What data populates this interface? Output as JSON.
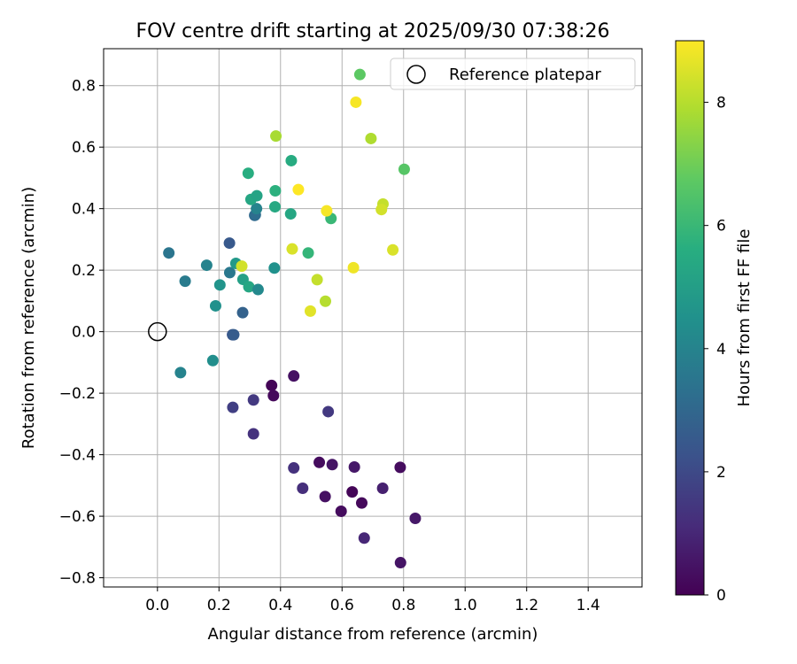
{
  "chart_data": {
    "type": "scatter",
    "title": "FOV centre drift starting at 2025/09/30 07:38:26",
    "xlabel": "Angular distance from reference (arcmin)",
    "ylabel": "Rotation from reference (arcmin)",
    "xlim": [
      -0.175,
      1.575
    ],
    "ylim": [
      -0.83,
      0.92
    ],
    "xticks": [
      0.0,
      0.2,
      0.4,
      0.6,
      0.8,
      1.0,
      1.2,
      1.4
    ],
    "xtick_labels": [
      "0.0",
      "0.2",
      "0.4",
      "0.6",
      "0.8",
      "1.0",
      "1.2",
      "1.4"
    ],
    "yticks": [
      -0.8,
      -0.6,
      -0.4,
      -0.2,
      0.0,
      0.2,
      0.4,
      0.6,
      0.8
    ],
    "ytick_labels": [
      "−0.8",
      "−0.6",
      "−0.4",
      "−0.2",
      "0.0",
      "0.2",
      "0.4",
      "0.6",
      "0.8"
    ],
    "grid": true,
    "colormap": "viridis",
    "colorbar": {
      "label": "Hours from first FF file",
      "range": [
        0,
        9
      ],
      "ticks": [
        0,
        2,
        4,
        6,
        8
      ],
      "tick_labels": [
        "0",
        "2",
        "4",
        "6",
        "8"
      ]
    },
    "legend": {
      "placement": "top-right",
      "entries": [
        "Reference platepar"
      ]
    },
    "reference_point": {
      "label": "Reference platepar",
      "x": 0.0,
      "y": 0.0,
      "marker": "open-circle"
    },
    "points": [
      {
        "x": 0.371,
        "y": -0.175,
        "h": 0.1
      },
      {
        "x": 0.377,
        "y": -0.208,
        "h": 0.2
      },
      {
        "x": 0.443,
        "y": -0.144,
        "h": 0.4
      },
      {
        "x": 0.526,
        "y": -0.425,
        "h": 0.3
      },
      {
        "x": 0.568,
        "y": -0.432,
        "h": 0.5
      },
      {
        "x": 0.545,
        "y": -0.536,
        "h": 0.4
      },
      {
        "x": 0.597,
        "y": -0.584,
        "h": 0.3
      },
      {
        "x": 0.633,
        "y": -0.521,
        "h": 0.1
      },
      {
        "x": 0.664,
        "y": -0.557,
        "h": 0.2
      },
      {
        "x": 0.64,
        "y": -0.44,
        "h": 0.6
      },
      {
        "x": 0.672,
        "y": -0.671,
        "h": 1.0
      },
      {
        "x": 0.732,
        "y": -0.509,
        "h": 0.8
      },
      {
        "x": 0.789,
        "y": -0.441,
        "h": 0.3
      },
      {
        "x": 0.79,
        "y": -0.751,
        "h": 0.5
      },
      {
        "x": 0.838,
        "y": -0.607,
        "h": 0.6
      },
      {
        "x": 0.443,
        "y": -0.443,
        "h": 1.3
      },
      {
        "x": 0.472,
        "y": -0.509,
        "h": 1.2
      },
      {
        "x": 0.555,
        "y": -0.26,
        "h": 1.5
      },
      {
        "x": 0.312,
        "y": -0.222,
        "h": 1.5
      },
      {
        "x": 0.312,
        "y": -0.332,
        "h": 1.3
      },
      {
        "x": 0.245,
        "y": -0.246,
        "h": 1.7
      },
      {
        "x": 0.244,
        "y": -0.01,
        "h": 2.4
      },
      {
        "x": 0.248,
        "y": -0.01,
        "h": 2.6
      },
      {
        "x": 0.277,
        "y": 0.062,
        "h": 2.8
      },
      {
        "x": 0.234,
        "y": 0.288,
        "h": 2.5
      },
      {
        "x": 0.316,
        "y": 0.378,
        "h": 3.0
      },
      {
        "x": 0.318,
        "y": 0.38,
        "h": 3.2
      },
      {
        "x": 0.322,
        "y": 0.4,
        "h": 4.0
      },
      {
        "x": 0.235,
        "y": 0.192,
        "h": 3.6
      },
      {
        "x": 0.037,
        "y": 0.256,
        "h": 3.5
      },
      {
        "x": 0.09,
        "y": 0.164,
        "h": 3.7
      },
      {
        "x": 0.16,
        "y": 0.216,
        "h": 4.0
      },
      {
        "x": 0.075,
        "y": -0.133,
        "h": 4.0
      },
      {
        "x": 0.18,
        "y": -0.094,
        "h": 4.4
      },
      {
        "x": 0.189,
        "y": 0.084,
        "h": 4.5
      },
      {
        "x": 0.203,
        "y": 0.152,
        "h": 4.6
      },
      {
        "x": 0.255,
        "y": 0.222,
        "h": 4.8
      },
      {
        "x": 0.278,
        "y": 0.17,
        "h": 5.1
      },
      {
        "x": 0.297,
        "y": 0.146,
        "h": 5.3
      },
      {
        "x": 0.327,
        "y": 0.137,
        "h": 4.2
      },
      {
        "x": 0.38,
        "y": 0.207,
        "h": 4.5
      },
      {
        "x": 0.304,
        "y": 0.43,
        "h": 5.3
      },
      {
        "x": 0.323,
        "y": 0.442,
        "h": 5.2
      },
      {
        "x": 0.295,
        "y": 0.515,
        "h": 5.6
      },
      {
        "x": 0.382,
        "y": 0.406,
        "h": 5.4
      },
      {
        "x": 0.383,
        "y": 0.458,
        "h": 5.7
      },
      {
        "x": 0.433,
        "y": 0.383,
        "h": 5.3
      },
      {
        "x": 0.435,
        "y": 0.556,
        "h": 5.5
      },
      {
        "x": 0.49,
        "y": 0.256,
        "h": 5.9
      },
      {
        "x": 0.564,
        "y": 0.368,
        "h": 6.0
      },
      {
        "x": 0.802,
        "y": 0.528,
        "h": 6.6
      },
      {
        "x": 0.658,
        "y": 0.836,
        "h": 6.7
      },
      {
        "x": 0.385,
        "y": 0.636,
        "h": 7.8
      },
      {
        "x": 0.274,
        "y": 0.213,
        "h": 8.4
      },
      {
        "x": 0.438,
        "y": 0.269,
        "h": 8.5
      },
      {
        "x": 0.497,
        "y": 0.067,
        "h": 8.6
      },
      {
        "x": 0.519,
        "y": 0.169,
        "h": 8.2
      },
      {
        "x": 0.546,
        "y": 0.099,
        "h": 8.0
      },
      {
        "x": 0.694,
        "y": 0.628,
        "h": 7.9
      },
      {
        "x": 0.733,
        "y": 0.415,
        "h": 8.2
      },
      {
        "x": 0.728,
        "y": 0.397,
        "h": 8.4
      },
      {
        "x": 0.765,
        "y": 0.266,
        "h": 8.5
      },
      {
        "x": 0.458,
        "y": 0.462,
        "h": 9.0
      },
      {
        "x": 0.55,
        "y": 0.393,
        "h": 8.9
      },
      {
        "x": 0.637,
        "y": 0.208,
        "h": 8.8
      },
      {
        "x": 0.645,
        "y": 0.746,
        "h": 8.9
      }
    ]
  }
}
